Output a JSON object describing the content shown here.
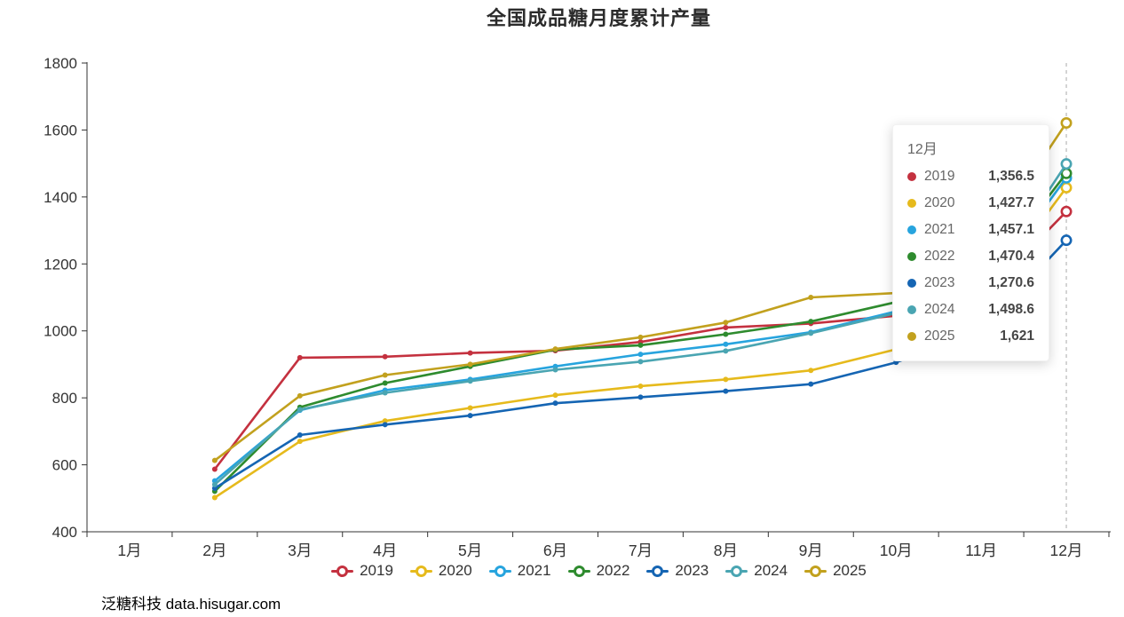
{
  "title": "全国成品糖月度累计产量",
  "watermark": "泛糖科技 data.hisugar.com",
  "tooltip": {
    "header": "12月",
    "rows": [
      {
        "year": "2019",
        "value": "1,356.5",
        "color": "#c4313f"
      },
      {
        "year": "2020",
        "value": "1,427.7",
        "color": "#e6ba1c"
      },
      {
        "year": "2021",
        "value": "1,457.1",
        "color": "#27a4de"
      },
      {
        "year": "2022",
        "value": "1,470.4",
        "color": "#2e8b2e"
      },
      {
        "year": "2023",
        "value": "1,270.6",
        "color": "#1565b3"
      },
      {
        "year": "2024",
        "value": "1,498.6",
        "color": "#4aa5b2"
      },
      {
        "year": "2025",
        "value": "1,621",
        "color": "#c2a11e"
      }
    ]
  },
  "chart_data": {
    "type": "line",
    "title": "全国成品糖月度累计产量",
    "xlabel": "",
    "ylabel": "",
    "categories": [
      "1月",
      "2月",
      "3月",
      "4月",
      "5月",
      "6月",
      "7月",
      "8月",
      "9月",
      "10月",
      "11月",
      "12月"
    ],
    "ylim": [
      400,
      1800
    ],
    "y_tick_step": 200,
    "y_tick_labels": [
      "400",
      "600",
      "800",
      "1000",
      "1200",
      "1400",
      "1600",
      "1800"
    ],
    "grid": false,
    "legend_position": "bottom",
    "axis_pointer_month": "12月",
    "series": [
      {
        "name": "2019",
        "color": "#c4313f",
        "values": [
          null,
          587,
          920,
          923,
          934,
          941,
          967,
          1010,
          1022,
          1045,
          1095,
          1356.5
        ]
      },
      {
        "name": "2020",
        "color": "#e6ba1c",
        "values": [
          null,
          502,
          670,
          731,
          770,
          808,
          835,
          855,
          882,
          945,
          1085,
          1427.7
        ]
      },
      {
        "name": "2021",
        "color": "#27a4de",
        "values": [
          null,
          552,
          763,
          823,
          855,
          894,
          930,
          960,
          996,
          1058,
          1110,
          1457.1
        ]
      },
      {
        "name": "2022",
        "color": "#2e8b2e",
        "values": [
          null,
          521,
          772,
          844,
          894,
          944,
          957,
          990,
          1028,
          1086,
          1140,
          1470.4
        ]
      },
      {
        "name": "2023",
        "color": "#1565b3",
        "values": [
          null,
          530,
          689,
          720,
          747,
          784,
          802,
          820,
          841,
          906,
          1000,
          1270.6
        ]
      },
      {
        "name": "2024",
        "color": "#4aa5b2",
        "values": [
          null,
          541,
          765,
          815,
          850,
          884,
          908,
          940,
          993,
          1053,
          1115,
          1498.6
        ]
      },
      {
        "name": "2025",
        "color": "#c2a11e",
        "values": [
          null,
          613,
          806,
          868,
          900,
          946,
          981,
          1025,
          1100,
          1113,
          1240,
          1621
        ]
      }
    ]
  }
}
